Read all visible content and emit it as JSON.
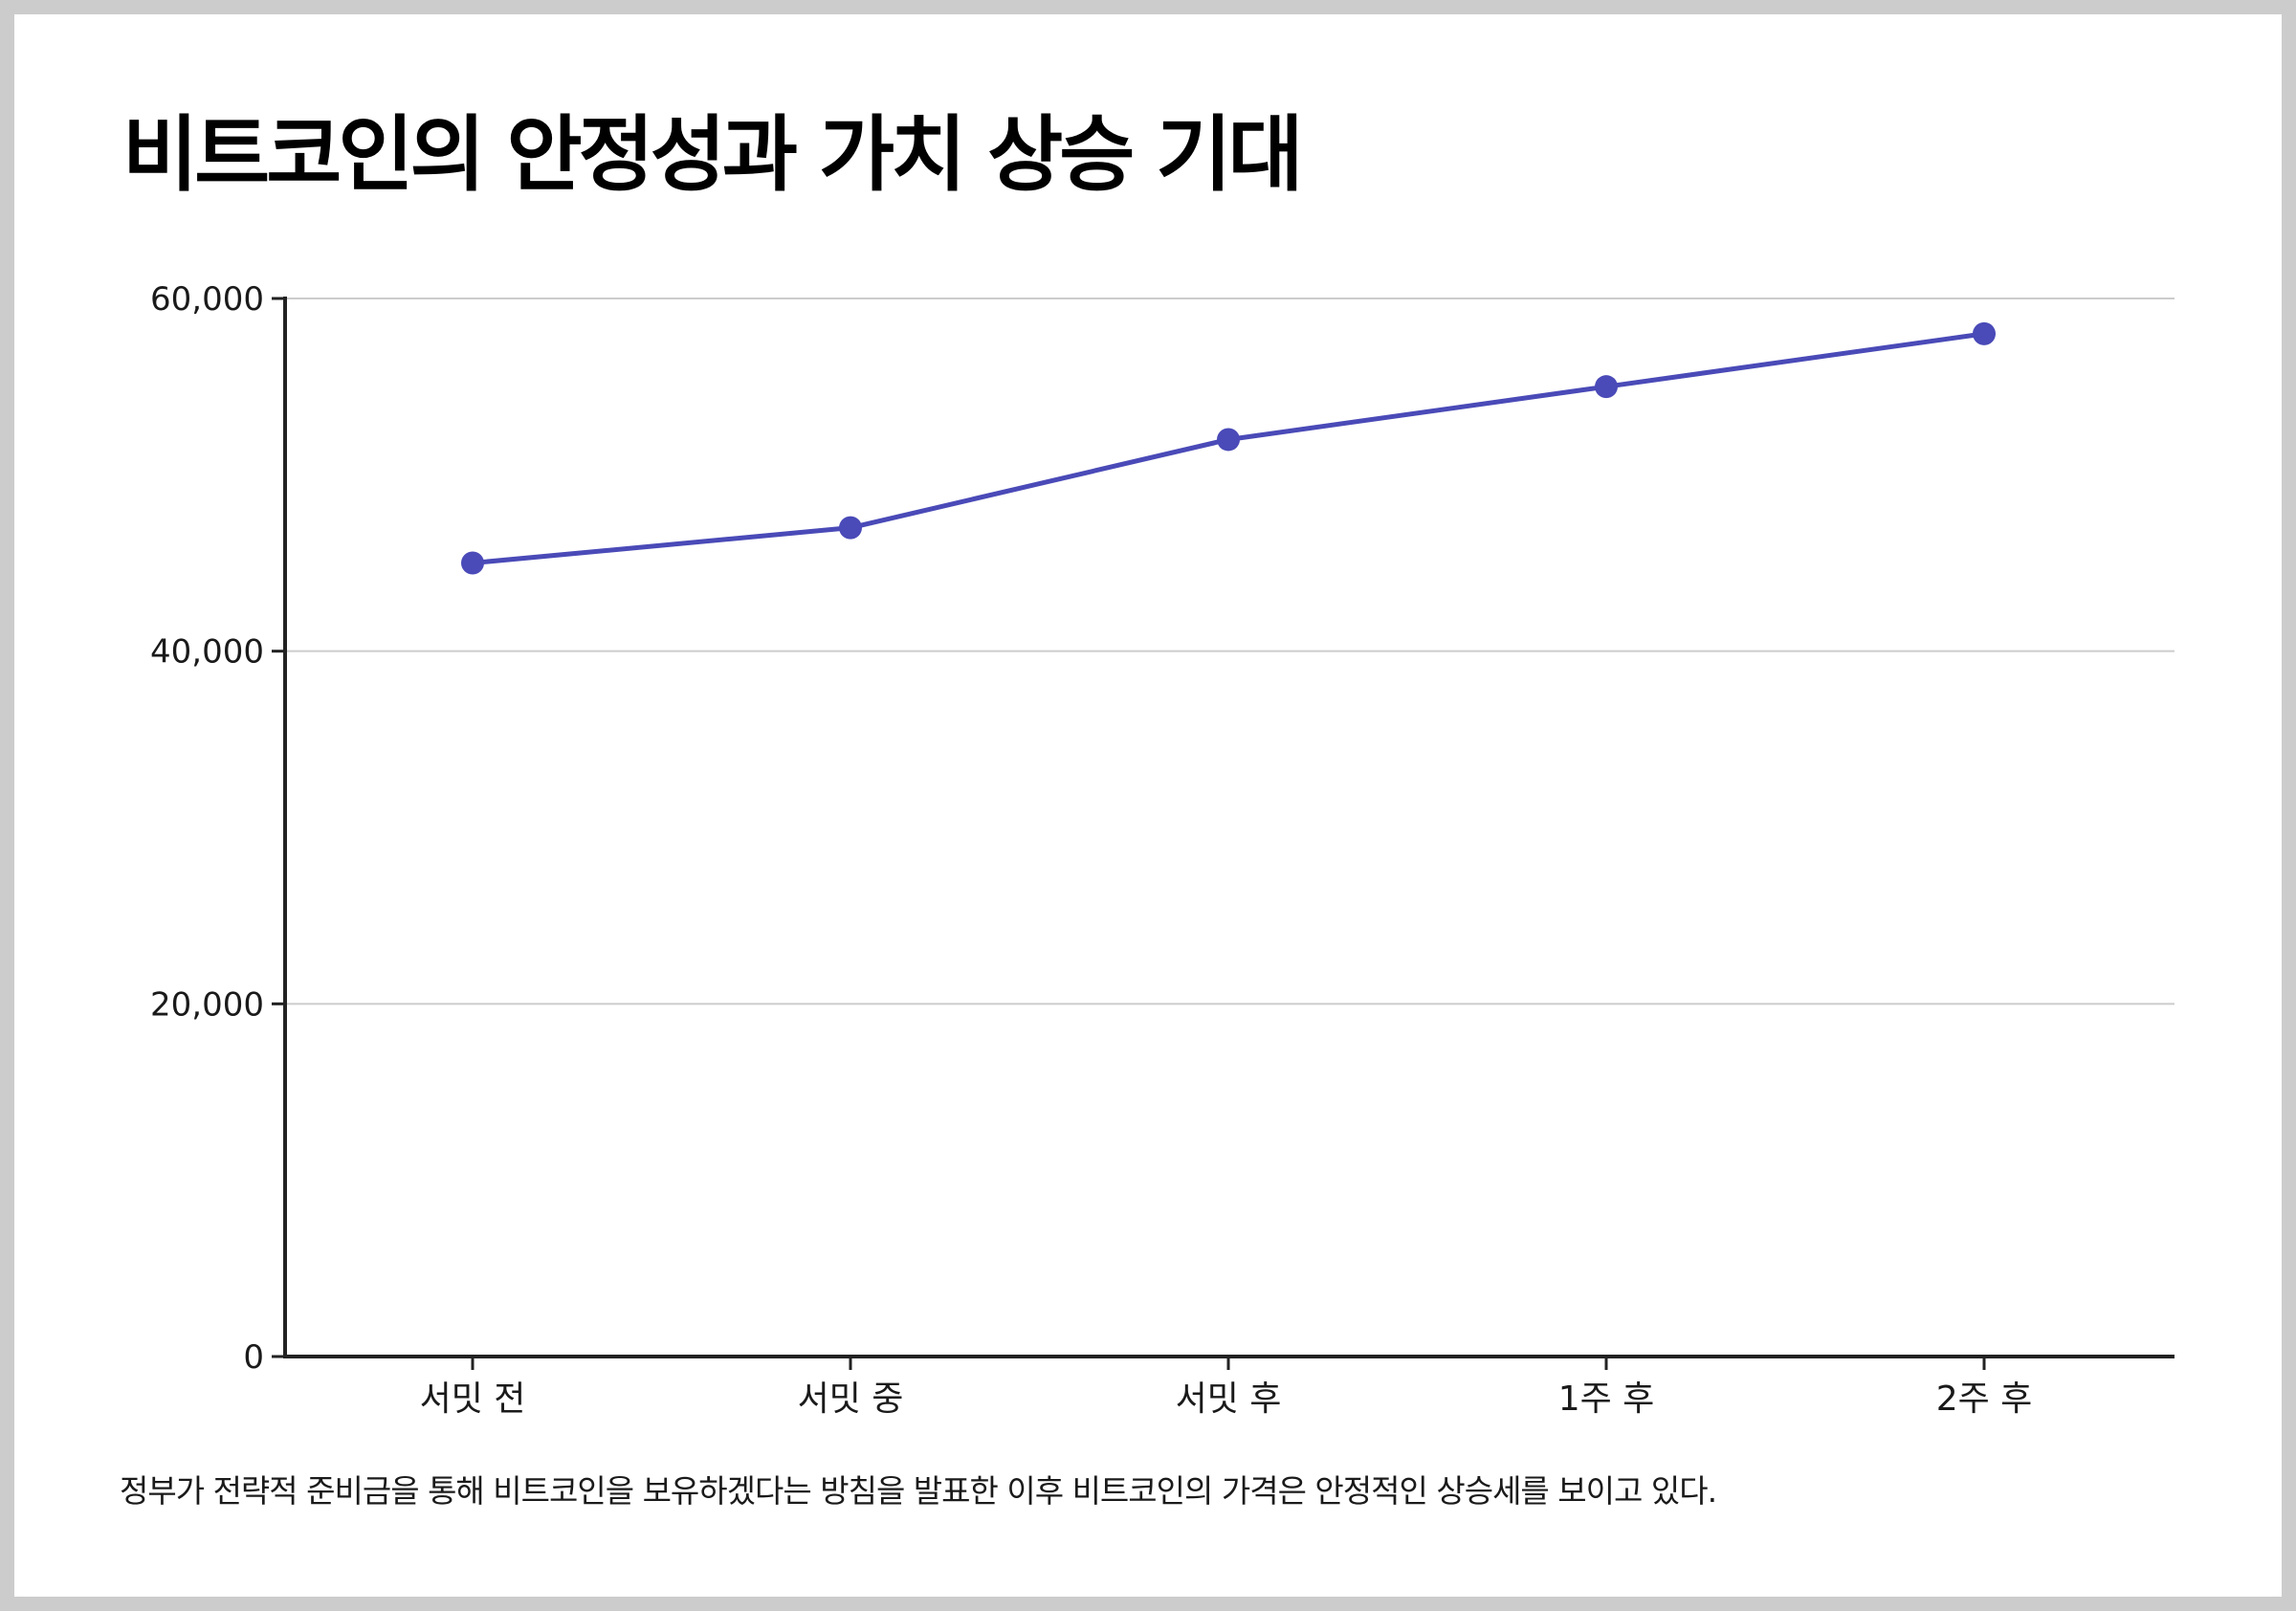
{
  "colors": {
    "line": "#4a4ab8",
    "axis": "#222222",
    "grid": "#cccccc",
    "text": "#1a1a1a"
  },
  "caption": "정부가 전략적 준비금을 통해 비트코인을 보유하겠다는 방침을 발표한 이후 비트코인의 가격은 안정적인 상승세를 보이고 있다.",
  "chart_data": {
    "type": "line",
    "title": "비트코인의 안정성과 가치 상승 기대",
    "categories": [
      "서밋 전",
      "서밋 중",
      "서밋 후",
      "1주 후",
      "2주 후"
    ],
    "series": [
      {
        "values": [
          45000,
          47000,
          52000,
          55000,
          58000
        ]
      }
    ],
    "xlabel": "",
    "ylabel": "",
    "ylim": [
      0,
      60000
    ],
    "yticks": [
      0,
      20000,
      40000,
      60000
    ],
    "ytick_labels": [
      "0",
      "20,000",
      "40,000",
      "60,000"
    ],
    "grid": true,
    "legend": "none"
  }
}
